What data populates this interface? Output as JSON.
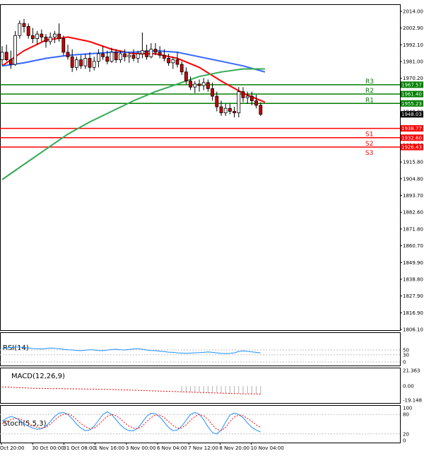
{
  "chart_data": [
    {
      "type": "candlestick",
      "panel": "price",
      "ylim": [
        1806.1,
        2016
      ],
      "y_ticks": [
        "2014.00",
        "2002.90",
        "1992.10",
        "1981.00",
        "1970.20",
        "1959.10",
        "1948.03",
        "1938.00",
        "1926.90",
        "1915.80",
        "1904.80",
        "1893.70",
        "1882.60",
        "1871.80",
        "1860.70",
        "1849.90",
        "1838.80",
        "1827.90",
        "1816.90",
        "1806.10"
      ],
      "current_price_label": "1948.03",
      "candles": [
        {
          "o": 1984,
          "h": 1993,
          "l": 1980,
          "c": 1989
        },
        {
          "o": 1989,
          "h": 1994,
          "l": 1983,
          "c": 1984
        },
        {
          "o": 1984,
          "h": 1990,
          "l": 1978,
          "c": 1981
        },
        {
          "o": 1981,
          "h": 2003,
          "l": 1980,
          "c": 2000
        },
        {
          "o": 2000,
          "h": 2010,
          "l": 1998,
          "c": 2008
        },
        {
          "o": 2008,
          "h": 2011,
          "l": 2002,
          "c": 2006
        },
        {
          "o": 2006,
          "h": 2008,
          "l": 1998,
          "c": 2000
        },
        {
          "o": 2000,
          "h": 2005,
          "l": 1995,
          "c": 1998
        },
        {
          "o": 1998,
          "h": 2003,
          "l": 1994,
          "c": 2001
        },
        {
          "o": 2001,
          "h": 2004,
          "l": 1996,
          "c": 1999
        },
        {
          "o": 1999,
          "h": 2001,
          "l": 1992,
          "c": 1996
        },
        {
          "o": 1996,
          "h": 2002,
          "l": 1994,
          "c": 1999
        },
        {
          "o": 1999,
          "h": 2003,
          "l": 1995,
          "c": 2001
        },
        {
          "o": 2001,
          "h": 2008,
          "l": 1996,
          "c": 1998
        },
        {
          "o": 1998,
          "h": 2000,
          "l": 1987,
          "c": 1989
        },
        {
          "o": 1989,
          "h": 1994,
          "l": 1984,
          "c": 1986
        },
        {
          "o": 1986,
          "h": 1991,
          "l": 1976,
          "c": 1979
        },
        {
          "o": 1979,
          "h": 1986,
          "l": 1977,
          "c": 1984
        },
        {
          "o": 1984,
          "h": 1987,
          "l": 1978,
          "c": 1980
        },
        {
          "o": 1980,
          "h": 1988,
          "l": 1978,
          "c": 1985
        },
        {
          "o": 1985,
          "h": 1989,
          "l": 1976,
          "c": 1979
        },
        {
          "o": 1979,
          "h": 1986,
          "l": 1977,
          "c": 1983
        },
        {
          "o": 1983,
          "h": 1991,
          "l": 1979,
          "c": 1988
        },
        {
          "o": 1988,
          "h": 1993,
          "l": 1984,
          "c": 1986
        },
        {
          "o": 1986,
          "h": 1990,
          "l": 1981,
          "c": 1983
        },
        {
          "o": 1983,
          "h": 1992,
          "l": 1982,
          "c": 1989
        },
        {
          "o": 1989,
          "h": 1991,
          "l": 1982,
          "c": 1984
        },
        {
          "o": 1984,
          "h": 1990,
          "l": 1982,
          "c": 1988
        },
        {
          "o": 1988,
          "h": 1991,
          "l": 1983,
          "c": 1986
        },
        {
          "o": 1986,
          "h": 1989,
          "l": 1982,
          "c": 1987
        },
        {
          "o": 1987,
          "h": 1991,
          "l": 1983,
          "c": 1985
        },
        {
          "o": 1985,
          "h": 1990,
          "l": 1982,
          "c": 1988
        },
        {
          "o": 1988,
          "h": 2002,
          "l": 1985,
          "c": 1990
        },
        {
          "o": 1990,
          "h": 1994,
          "l": 1984,
          "c": 1986
        },
        {
          "o": 1986,
          "h": 1995,
          "l": 1985,
          "c": 1991
        },
        {
          "o": 1991,
          "h": 1995,
          "l": 1987,
          "c": 1989
        },
        {
          "o": 1989,
          "h": 1993,
          "l": 1985,
          "c": 1987
        },
        {
          "o": 1987,
          "h": 1991,
          "l": 1983,
          "c": 1985
        },
        {
          "o": 1985,
          "h": 1988,
          "l": 1980,
          "c": 1982
        },
        {
          "o": 1982,
          "h": 1986,
          "l": 1978,
          "c": 1984
        },
        {
          "o": 1984,
          "h": 1989,
          "l": 1979,
          "c": 1981
        },
        {
          "o": 1981,
          "h": 1983,
          "l": 1974,
          "c": 1976
        },
        {
          "o": 1976,
          "h": 1979,
          "l": 1968,
          "c": 1970
        },
        {
          "o": 1970,
          "h": 1973,
          "l": 1964,
          "c": 1966
        },
        {
          "o": 1966,
          "h": 1970,
          "l": 1962,
          "c": 1968
        },
        {
          "o": 1968,
          "h": 1971,
          "l": 1963,
          "c": 1967
        },
        {
          "o": 1967,
          "h": 1972,
          "l": 1964,
          "c": 1969
        },
        {
          "o": 1969,
          "h": 1971,
          "l": 1963,
          "c": 1965
        },
        {
          "o": 1965,
          "h": 1969,
          "l": 1957,
          "c": 1960
        },
        {
          "o": 1960,
          "h": 1963,
          "l": 1950,
          "c": 1953
        },
        {
          "o": 1953,
          "h": 1957,
          "l": 1947,
          "c": 1949
        },
        {
          "o": 1949,
          "h": 1955,
          "l": 1947,
          "c": 1952
        },
        {
          "o": 1952,
          "h": 1955,
          "l": 1948,
          "c": 1950
        },
        {
          "o": 1950,
          "h": 1953,
          "l": 1946,
          "c": 1949
        },
        {
          "o": 1949,
          "h": 1966,
          "l": 1946,
          "c": 1963
        },
        {
          "o": 1963,
          "h": 1966,
          "l": 1956,
          "c": 1959
        },
        {
          "o": 1959,
          "h": 1963,
          "l": 1955,
          "c": 1960
        },
        {
          "o": 1960,
          "h": 1963,
          "l": 1954,
          "c": 1957
        },
        {
          "o": 1957,
          "h": 1961,
          "l": 1952,
          "c": 1954
        },
        {
          "o": 1954,
          "h": 1956,
          "l": 1947,
          "c": 1948
        }
      ],
      "series": [
        {
          "color": "#ff0000",
          "values": [
            [
              0,
              1980
            ],
            [
              5,
              1990
            ],
            [
              10,
              1997
            ],
            [
              15,
              1999
            ],
            [
              20,
              1996
            ],
            [
              25,
              1991
            ],
            [
              30,
              1988
            ],
            [
              35,
              1988
            ],
            [
              40,
              1985
            ],
            [
              45,
              1979
            ],
            [
              50,
              1970
            ],
            [
              55,
              1962
            ],
            [
              60,
              1956
            ]
          ]
        },
        {
          "color": "#3366ff",
          "values": [
            [
              0,
              1980
            ],
            [
              5,
              1982
            ],
            [
              10,
              1985
            ],
            [
              15,
              1987
            ],
            [
              20,
              1988
            ],
            [
              25,
              1989
            ],
            [
              30,
              1989
            ],
            [
              35,
              1990
            ],
            [
              40,
              1989
            ],
            [
              45,
              1986
            ],
            [
              50,
              1983
            ],
            [
              55,
              1980
            ],
            [
              60,
              1976
            ]
          ]
        },
        {
          "color": "#33aa55",
          "values": [
            [
              0,
              1905
            ],
            [
              5,
              1915
            ],
            [
              10,
              1925
            ],
            [
              15,
              1935
            ],
            [
              20,
              1943
            ],
            [
              25,
              1950
            ],
            [
              30,
              1957
            ],
            [
              35,
              1963
            ],
            [
              40,
              1968
            ],
            [
              45,
              1973
            ],
            [
              50,
              1976
            ],
            [
              55,
              1978
            ],
            [
              60,
              1978
            ]
          ]
        }
      ],
      "levels": [
        {
          "label": "R3",
          "value": 1967.57,
          "price_label": "1967.57",
          "color": "#008000"
        },
        {
          "label": "R2",
          "value": 1961.4,
          "price_label": "1961.40",
          "color": "#008000"
        },
        {
          "label": "R1",
          "value": 1955.23,
          "price_label": "1955.23",
          "color": "#008000"
        },
        {
          "label": "S1",
          "value": 1938.77,
          "price_label": "1938.77",
          "color": "#ff0000"
        },
        {
          "label": "S2",
          "value": 1932.6,
          "price_label": "1932.60",
          "color": "#ff0000"
        },
        {
          "label": "S3",
          "value": 1926.43,
          "price_label": "1926.43",
          "color": "#ff0000"
        }
      ],
      "x_tick_labels": [
        "Oct 20:00",
        "30 Oct 00:00",
        "31 Oct 08:00",
        "1 Nov 16:00",
        "3 Nov 00:00",
        "6 Nov 04:00",
        "7 Nov 12:00",
        "8 Nov 20:00",
        "10 Nov 04:00"
      ]
    },
    {
      "type": "line",
      "panel": "rsi",
      "title": "RSI(14)",
      "ylim": [
        0,
        100
      ],
      "y_ticks": [
        "50",
        "30",
        "0"
      ],
      "series": [
        {
          "color": "#1e90ff",
          "values": [
            55,
            58,
            60,
            61,
            62,
            60,
            58,
            56,
            55,
            54,
            56,
            58,
            57,
            55,
            53,
            51,
            50,
            48,
            47,
            49,
            51,
            50,
            48,
            47,
            49,
            52,
            53,
            51,
            50,
            52,
            54,
            55,
            53,
            50,
            48,
            47,
            45,
            43,
            41,
            40,
            38,
            37,
            36,
            37,
            38,
            39,
            40,
            42,
            40,
            38,
            36,
            35,
            36,
            38,
            44,
            46,
            44,
            42,
            40,
            38
          ]
        }
      ]
    },
    {
      "type": "bar",
      "panel": "macd",
      "title": "MACD(12,26,9)",
      "ylim": [
        -19.148,
        21.363
      ],
      "y_ticks": [
        "21.363",
        "0.00",
        "-19.148"
      ],
      "series": [
        {
          "name": "",
          "color": "#ff0000",
          "values": [
            -1.0,
            -1.3,
            -1.6,
            -1.9,
            -2.2,
            -2.5,
            -2.7,
            -2.9,
            -3.0,
            -3.1,
            -3.2,
            -3.3,
            -3.3,
            -3.4,
            -3.5,
            -3.6,
            -3.7,
            -3.8,
            -3.9,
            -4.0,
            -4.1,
            -4.2,
            -4.3,
            -4.4,
            -4.5,
            -4.6,
            -4.8,
            -5.0,
            -5.2,
            -5.4,
            -5.6,
            -5.8,
            -6.0,
            -6.2,
            -6.4,
            -6.6,
            -6.8,
            -7.0,
            -7.2,
            -7.4,
            -7.6,
            -7.8,
            -8.0,
            -8.2,
            -8.4,
            -8.6,
            -8.8,
            -9.0,
            -9.2,
            -9.4,
            -9.6,
            -9.8,
            -10.0,
            -10.2,
            -10.4,
            -10.5,
            -10.6,
            -10.7,
            -10.8,
            -10.9
          ]
        }
      ]
    },
    {
      "type": "line",
      "panel": "stoch",
      "title": "Stoch(5,5,3)",
      "ylim": [
        0,
        100
      ],
      "y_ticks": [
        "100",
        "80",
        "20",
        "0"
      ],
      "series": [
        {
          "color": "#1e90ff",
          "values": [
            60,
            68,
            74,
            70,
            62,
            52,
            44,
            38,
            34,
            36,
            44,
            58,
            74,
            84,
            86,
            80,
            66,
            50,
            38,
            30,
            32,
            44,
            62,
            80,
            88,
            80,
            64,
            48,
            36,
            30,
            30,
            38,
            56,
            74,
            84,
            82,
            72,
            56,
            40,
            30,
            32,
            44,
            62,
            80,
            86,
            80,
            64,
            42,
            24,
            20,
            32,
            56,
            78,
            84,
            80,
            70,
            54,
            40,
            32,
            26
          ]
        },
        {
          "color": "#ff0000",
          "values": [
            52,
            58,
            64,
            68,
            66,
            60,
            52,
            45,
            40,
            38,
            41,
            50,
            62,
            74,
            80,
            82,
            76,
            64,
            52,
            42,
            36,
            38,
            48,
            62,
            74,
            80,
            76,
            66,
            54,
            44,
            38,
            36,
            44,
            58,
            70,
            78,
            78,
            70,
            58,
            46,
            38,
            38,
            48,
            62,
            74,
            80,
            76,
            64,
            48,
            34,
            30,
            40,
            58,
            72,
            78,
            76,
            68,
            58,
            48,
            40
          ]
        }
      ]
    }
  ]
}
